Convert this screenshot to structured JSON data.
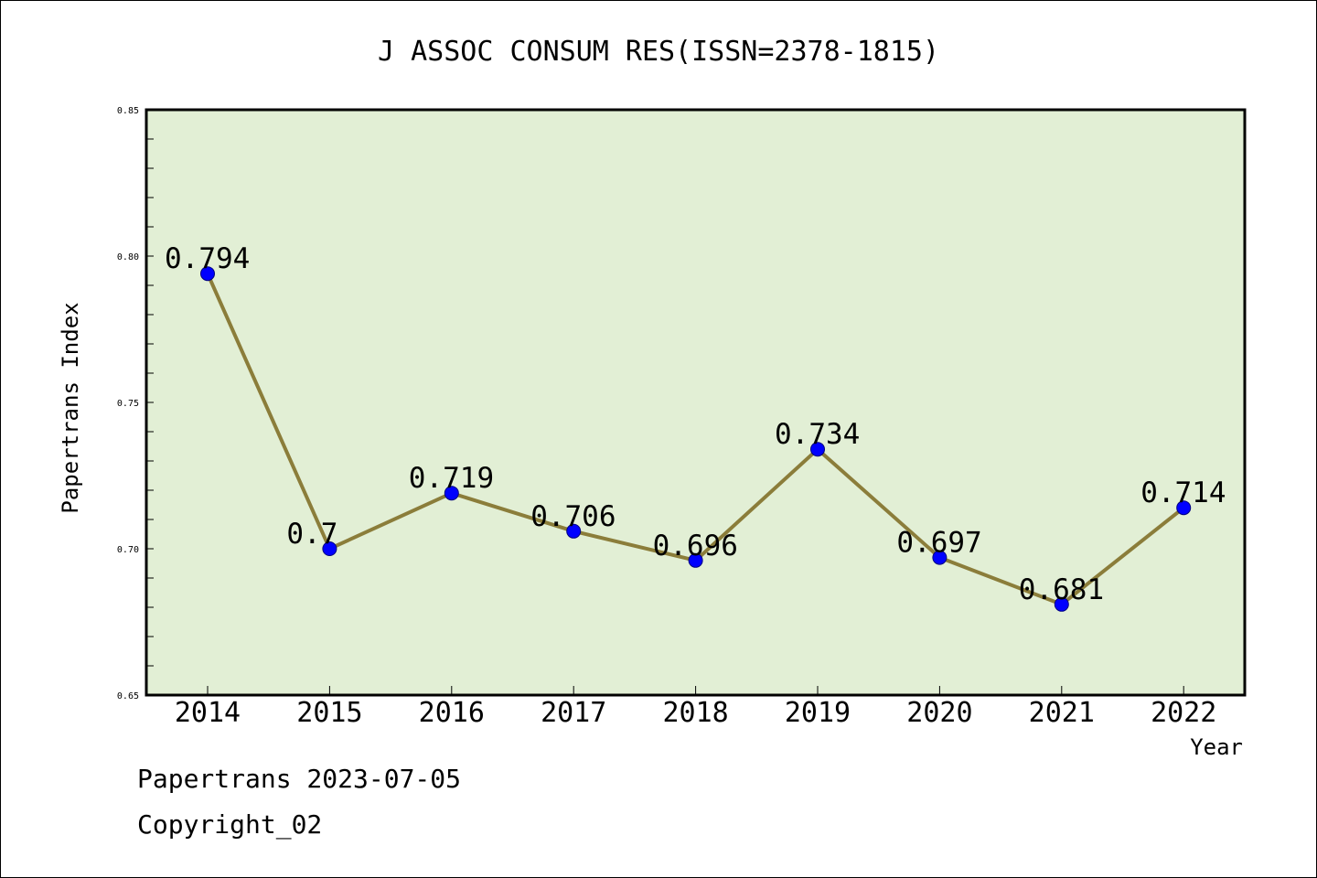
{
  "chart_data": {
    "type": "line",
    "title": "J ASSOC CONSUM RES(ISSN=2378-1815)",
    "xlabel": "Year",
    "ylabel": "Papertrans Index",
    "categories": [
      "2014",
      "2015",
      "2016",
      "2017",
      "2018",
      "2019",
      "2020",
      "2021",
      "2022"
    ],
    "values": [
      0.794,
      0.7,
      0.719,
      0.706,
      0.696,
      0.734,
      0.697,
      0.681,
      0.714
    ],
    "data_labels": [
      "0.794",
      "0.7",
      "0.719",
      "0.706",
      "0.696",
      "0.734",
      "0.697",
      "0.681",
      "0.714"
    ],
    "ylim": [
      0.65,
      0.85
    ],
    "yticks": [
      0.65,
      0.7,
      0.75,
      0.8,
      0.85
    ],
    "ytick_labels": [
      "0.65",
      "0.70",
      "0.75",
      "0.80",
      "0.85"
    ],
    "grid": false,
    "colors": {
      "plot_background": "#e2efd5",
      "line": "#8b7d3a",
      "marker": "#0000ff",
      "marker_edge": "#000080"
    }
  },
  "footer": {
    "credit": "Papertrans 2023-07-05",
    "copyright": "Copyright_02"
  }
}
